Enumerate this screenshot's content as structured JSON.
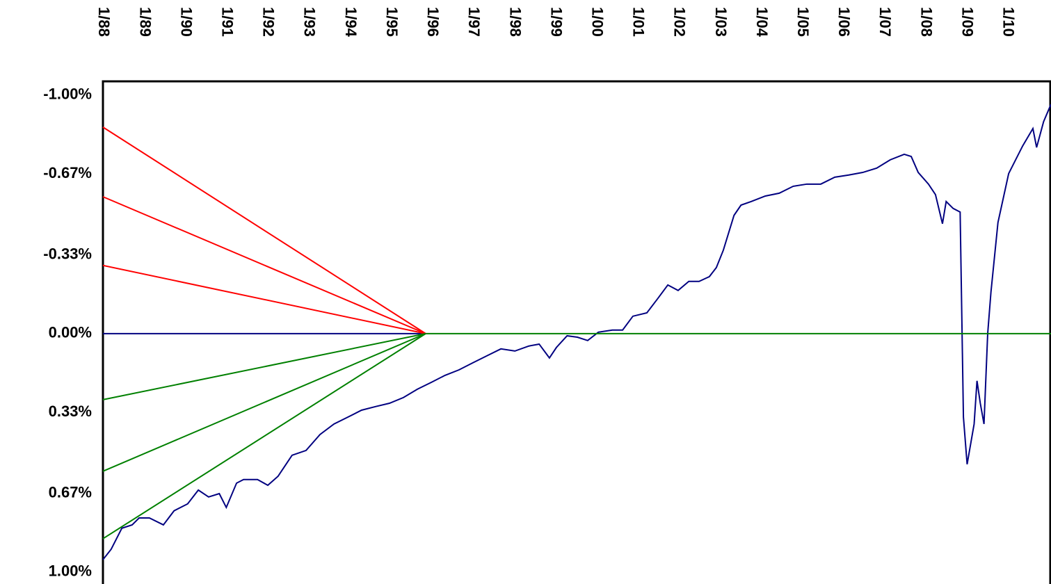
{
  "chart_data": {
    "type": "line",
    "xlim": [
      1988,
      2011.06
    ],
    "xticks": [
      {
        "value": 1988,
        "label": "1/88"
      },
      {
        "value": 1989,
        "label": "1/89"
      },
      {
        "value": 1990,
        "label": "1/90"
      },
      {
        "value": 1991,
        "label": "1/91"
      },
      {
        "value": 1992,
        "label": "1/92"
      },
      {
        "value": 1993,
        "label": "1/93"
      },
      {
        "value": 1994,
        "label": "1/94"
      },
      {
        "value": 1995,
        "label": "1/95"
      },
      {
        "value": 1996,
        "label": "1/96"
      },
      {
        "value": 1997,
        "label": "1/97"
      },
      {
        "value": 1998,
        "label": "1/98"
      },
      {
        "value": 1999,
        "label": "1/99"
      },
      {
        "value": 2000,
        "label": "1/00"
      },
      {
        "value": 2001,
        "label": "1/01"
      },
      {
        "value": 2002,
        "label": "1/02"
      },
      {
        "value": 2003,
        "label": "1/03"
      },
      {
        "value": 2004,
        "label": "1/04"
      },
      {
        "value": 2005,
        "label": "1/05"
      },
      {
        "value": 2006,
        "label": "1/06"
      },
      {
        "value": 2007,
        "label": "1/07"
      },
      {
        "value": 2008,
        "label": "1/08"
      },
      {
        "value": 2009,
        "label": "1/09"
      },
      {
        "value": 2010,
        "label": "1/10"
      }
    ],
    "ylim": [
      -1.058,
      1.05
    ],
    "y_inverted": true,
    "yticks": [
      {
        "value": -1,
        "label": "-1.00%"
      },
      {
        "value": -0.67,
        "label": "-0.67%"
      },
      {
        "value": -0.33,
        "label": "-0.33%"
      },
      {
        "value": 0,
        "label": "0.00%"
      },
      {
        "value": 0.33,
        "label": "0.33%"
      },
      {
        "value": 0.67,
        "label": "0.67%"
      },
      {
        "value": 1,
        "label": "1.00%"
      }
    ],
    "series": [
      {
        "color": "#000080",
        "x": [
          1988.0,
          1988.2,
          1988.46,
          1988.71,
          1988.88,
          1989.13,
          1989.47,
          1989.73,
          1990.06,
          1990.32,
          1990.57,
          1990.83,
          1991.0,
          1991.25,
          1991.42,
          1991.76,
          1992.01,
          1992.26,
          1992.6,
          1992.94,
          1993.28,
          1993.62,
          1993.96,
          1994.29,
          1994.63,
          1994.97,
          1995.31,
          1995.65,
          1995.99,
          1996.32,
          1996.66,
          1997.0,
          1997.34,
          1997.68,
          1998.02,
          1998.36,
          1998.61,
          1998.86,
          1999.03,
          1999.29,
          1999.54,
          1999.79,
          2000.05,
          2000.39,
          2000.64,
          2000.89,
          2001.23,
          2001.49,
          2001.74,
          2001.99,
          2002.25,
          2002.5,
          2002.75,
          2002.92,
          2003.09,
          2003.35,
          2003.52,
          2003.77,
          2004.11,
          2004.45,
          2004.79,
          2005.12,
          2005.46,
          2005.8,
          2006.14,
          2006.48,
          2006.82,
          2007.15,
          2007.49,
          2007.66,
          2007.83,
          2008.08,
          2008.25,
          2008.42,
          2008.51,
          2008.68,
          2008.85,
          2008.93,
          2009.02,
          2009.19,
          2009.26,
          2009.34,
          2009.43,
          2009.52,
          2009.6,
          2009.77,
          2010.03,
          2010.37,
          2010.62,
          2010.71,
          2010.88,
          2011.06
        ],
        "values": [
          0.948,
          0.904,
          0.816,
          0.802,
          0.773,
          0.773,
          0.802,
          0.743,
          0.714,
          0.656,
          0.685,
          0.671,
          0.729,
          0.627,
          0.612,
          0.612,
          0.636,
          0.598,
          0.51,
          0.49,
          0.423,
          0.379,
          0.35,
          0.321,
          0.306,
          0.292,
          0.268,
          0.233,
          0.204,
          0.175,
          0.152,
          0.122,
          0.093,
          0.064,
          0.073,
          0.052,
          0.044,
          0.102,
          0.058,
          0.009,
          0.015,
          0.029,
          -0.006,
          -0.015,
          -0.015,
          -0.073,
          -0.087,
          -0.146,
          -0.204,
          -0.181,
          -0.219,
          -0.219,
          -0.239,
          -0.277,
          -0.35,
          -0.496,
          -0.539,
          -0.554,
          -0.577,
          -0.589,
          -0.618,
          -0.627,
          -0.627,
          -0.656,
          -0.665,
          -0.676,
          -0.694,
          -0.729,
          -0.752,
          -0.743,
          -0.676,
          -0.627,
          -0.583,
          -0.461,
          -0.554,
          -0.525,
          -0.51,
          0.35,
          0.548,
          0.379,
          0.198,
          0.292,
          0.379,
          0.0,
          -0.175,
          -0.466,
          -0.671,
          -0.787,
          -0.86,
          -0.781,
          -0.889,
          -0.962
        ]
      },
      {
        "color": "#000080",
        "x": [
          1988,
          1995.85
        ],
        "values": [
          0,
          0
        ]
      },
      {
        "color": "#008000",
        "x": [
          1995.85,
          2011.06
        ],
        "values": [
          0,
          0
        ]
      },
      {
        "color": "#ff0000",
        "x": [
          1988,
          1995.85
        ],
        "values": [
          -0.866,
          0
        ]
      },
      {
        "color": "#ff0000",
        "x": [
          1988,
          1995.85
        ],
        "values": [
          -0.574,
          0
        ]
      },
      {
        "color": "#ff0000",
        "x": [
          1988,
          1995.85
        ],
        "values": [
          -0.286,
          0
        ]
      },
      {
        "color": "#008000",
        "x": [
          1988,
          1995.85
        ],
        "values": [
          0.277,
          0
        ]
      },
      {
        "color": "#008000",
        "x": [
          1988,
          1995.85
        ],
        "values": [
          0.577,
          0
        ]
      },
      {
        "color": "#008000",
        "x": [
          1988,
          1995.85
        ],
        "values": [
          0.86,
          0
        ]
      }
    ]
  }
}
